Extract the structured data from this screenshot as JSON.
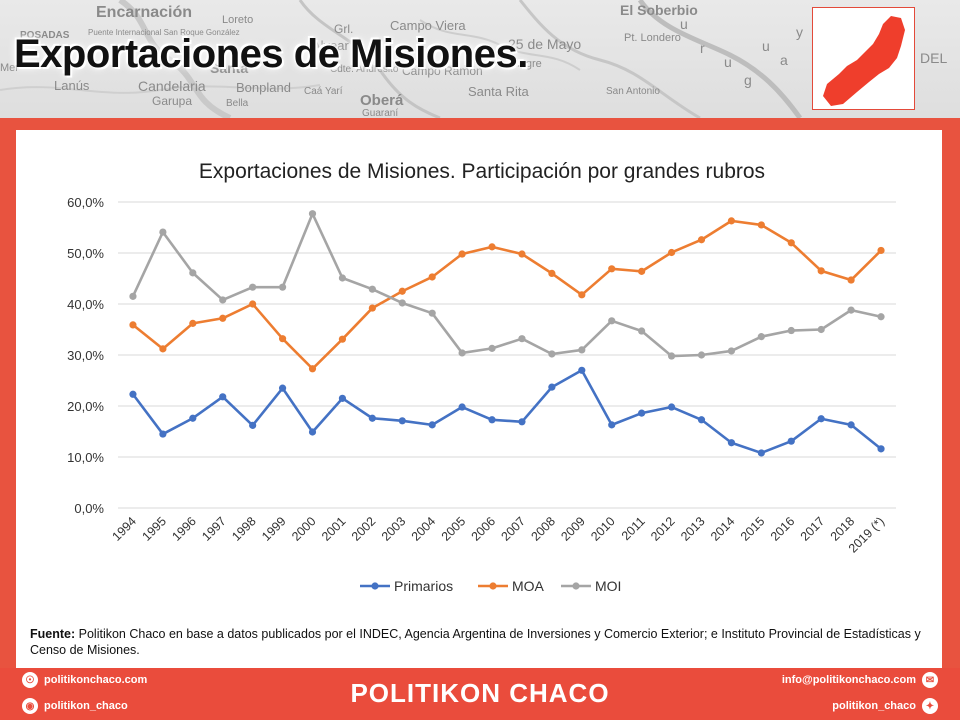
{
  "header": {
    "title": "Exportaciones de Misiones.",
    "map_labels": [
      "Encarnación",
      "Loreto",
      "Puente Internacional San Roque González",
      "POSADAS",
      "Santa",
      "Alvear",
      "Grl.",
      "Campo Viera",
      "25 de Mayo",
      "El Soberbio",
      "Pt. Londero",
      "Mel",
      "Lanús",
      "Candelaria",
      "Garupa",
      "Bella",
      "Bonpland",
      "Caá Yarí",
      "Cdte. Andresito",
      "Oberá",
      "Guaraní",
      "Santa Rita",
      "Alegre",
      "San Antonio",
      "Campo Ramón",
      "u",
      "r",
      "u",
      "g",
      "u",
      "a",
      "y",
      "DEL"
    ]
  },
  "chart_data": {
    "type": "line",
    "title": "Exportaciones de Misiones. Participación por grandes rubros",
    "categories": [
      "1994",
      "1995",
      "1996",
      "1997",
      "1998",
      "1999",
      "2000",
      "2001",
      "2002",
      "2003",
      "2004",
      "2005",
      "2006",
      "2007",
      "2008",
      "2009",
      "2010",
      "2011",
      "2012",
      "2013",
      "2014",
      "2015",
      "2016",
      "2017",
      "2018",
      "2019 (*)"
    ],
    "series": [
      {
        "name": "Primarios",
        "color": "#4472c4",
        "values": [
          22.3,
          14.5,
          17.6,
          21.8,
          16.2,
          23.5,
          14.9,
          21.5,
          17.6,
          17.1,
          16.3,
          19.8,
          17.3,
          16.9,
          23.7,
          27.0,
          16.3,
          18.6,
          19.8,
          17.3,
          12.8,
          10.8,
          13.1,
          17.5,
          16.3,
          11.6
        ]
      },
      {
        "name": "MOA",
        "color": "#ed7d31",
        "values": [
          35.9,
          31.2,
          36.2,
          37.2,
          40.0,
          33.2,
          27.3,
          33.1,
          39.2,
          42.5,
          45.3,
          49.8,
          51.2,
          49.8,
          46.0,
          41.8,
          46.9,
          46.4,
          50.1,
          52.6,
          56.3,
          55.5,
          52.0,
          46.5,
          44.7,
          50.5
        ]
      },
      {
        "name": "MOI",
        "color": "#a5a5a5",
        "values": [
          41.5,
          54.1,
          46.1,
          40.8,
          43.3,
          43.3,
          57.7,
          45.1,
          42.9,
          40.2,
          38.2,
          30.4,
          31.3,
          33.2,
          30.2,
          31.0,
          36.7,
          34.7,
          29.8,
          30.0,
          30.8,
          33.6,
          34.8,
          35.0,
          38.8,
          37.5
        ]
      }
    ],
    "yticks": [
      "0,0%",
      "10,0%",
      "20,0%",
      "30,0%",
      "40,0%",
      "50,0%",
      "60,0%"
    ],
    "ylim": [
      0,
      60
    ],
    "grid": true,
    "legend": "bottom"
  },
  "source": {
    "label": "Fuente:",
    "text": "Politikon Chaco en base a datos publicados por el INDEC, Agencia Argentina de Inversiones y Comercio Exterior; e Instituto Provincial de Estadísticas y Censo de Misiones."
  },
  "footer": {
    "website": "politikonchaco.com",
    "instagram": "politikon_chaco",
    "brand": "POLITIKON CHACO",
    "email": "info@politikonchaco.com",
    "twitter": "politikon_chaco"
  }
}
